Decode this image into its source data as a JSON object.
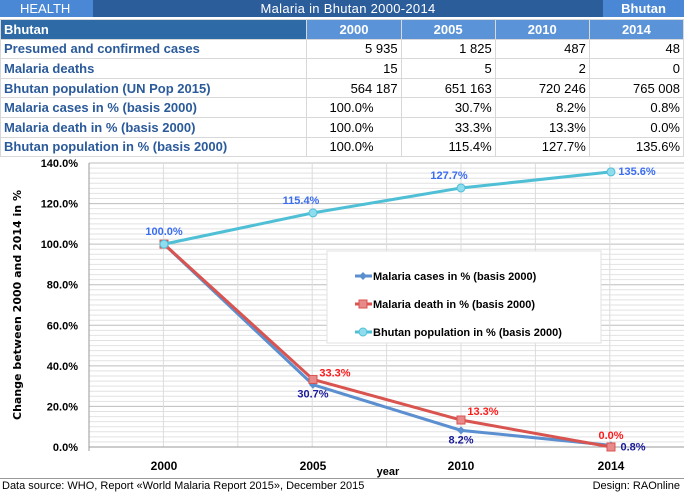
{
  "header": {
    "section": "HEALTH",
    "title": "Malaria in Bhutan 2000-2014",
    "country": "Bhutan"
  },
  "table": {
    "corner": "Bhutan",
    "years": [
      "2000",
      "2005",
      "2010",
      "2014"
    ],
    "rows": [
      {
        "label": "Presumed and confirmed cases",
        "values": [
          "5 935",
          "1 825",
          "487",
          "48"
        ]
      },
      {
        "label": "Malaria deaths",
        "values": [
          "15",
          "5",
          "2",
          "0"
        ]
      },
      {
        "label": "Bhutan population (UN Pop 2015)",
        "values": [
          "564 187",
          "651 163",
          "720 246",
          "765 008"
        ]
      },
      {
        "label": "Malaria cases in %  (basis 2000)",
        "values": [
          "100.0%",
          "30.7%",
          "8.2%",
          "0.8%"
        ]
      },
      {
        "label": "Malaria death in %  (basis 2000)",
        "values": [
          "100.0%",
          "33.3%",
          "13.3%",
          "0.0%"
        ]
      },
      {
        "label": "Bhutan population in %  (basis 2000)",
        "values": [
          "100.0%",
          "115.4%",
          "127.7%",
          "135.6%"
        ]
      }
    ]
  },
  "chart_data": {
    "type": "line",
    "categories": [
      "2000",
      "2005",
      "2010",
      "2014"
    ],
    "xlabel": "year",
    "ylabel": "Change between 2000 and  2014 in %",
    "ylim": [
      0,
      140
    ],
    "yticks": [
      "0.0%",
      "20.0%",
      "40.0%",
      "60.0%",
      "80.0%",
      "100.0%",
      "120.0%",
      "140.0%"
    ],
    "grid": true,
    "legend": "center-right",
    "series": [
      {
        "name": "Malaria cases in %  (basis 2000)",
        "values": [
          100.0,
          30.7,
          8.2,
          0.8
        ],
        "labels": [
          "",
          "30.7%",
          "8.2%",
          "0.8%"
        ],
        "color": "#5b8fd0",
        "label_color": "#1a1a9a",
        "marker": "diamond"
      },
      {
        "name": "Malaria death in %  (basis 2000)",
        "values": [
          100.0,
          33.3,
          13.3,
          0.0
        ],
        "labels": [
          "",
          "33.3%",
          "13.3%",
          "0.0%"
        ],
        "color": "#d9534f",
        "label_color": "#ff1a1a",
        "marker": "square"
      },
      {
        "name": "Bhutan population in %  (basis 2000)",
        "values": [
          100.0,
          115.4,
          127.7,
          135.6
        ],
        "labels": [
          "100.0%",
          "115.4%",
          "127.7%",
          "135.6%"
        ],
        "color": "#4fbfd6",
        "label_color": "#3a6df0",
        "marker": "circle"
      }
    ]
  },
  "footer": {
    "source": "Data source: WHO, Report «World Malaria Report 2015», December 2015",
    "design": "Design: RAOnline"
  }
}
